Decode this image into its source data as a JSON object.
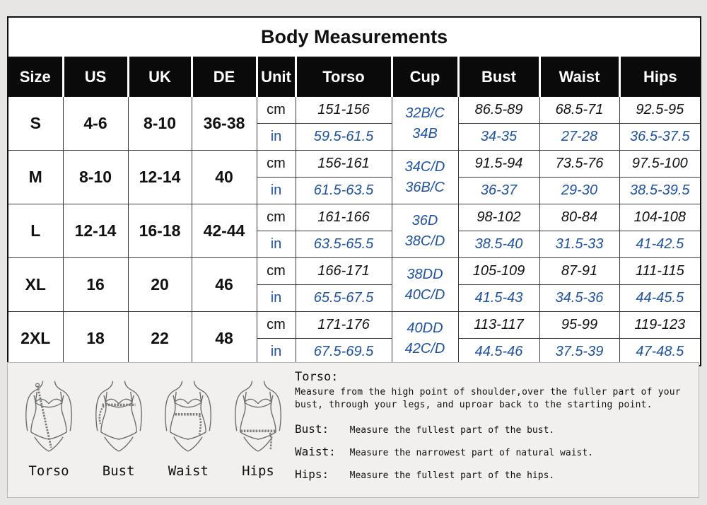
{
  "title": "Body Measurements",
  "table": {
    "columns": [
      "Size",
      "US",
      "UK",
      "DE",
      "Unit",
      "Torso",
      "Cup",
      "Bust",
      "Waist",
      "Hips"
    ],
    "unit_labels": {
      "cm": "cm",
      "in": "in"
    },
    "rows": [
      {
        "size": "S",
        "us": "4-6",
        "uk": "8-10",
        "de": "36-38",
        "cup": [
          "32B/C",
          "34B"
        ],
        "cm": {
          "torso": "151-156",
          "bust": "86.5-89",
          "waist": "68.5-71",
          "hips": "92.5-95"
        },
        "in": {
          "torso": "59.5-61.5",
          "bust": "34-35",
          "waist": "27-28",
          "hips": "36.5-37.5"
        }
      },
      {
        "size": "M",
        "us": "8-10",
        "uk": "12-14",
        "de": "40",
        "cup": [
          "34C/D",
          "36B/C"
        ],
        "cm": {
          "torso": "156-161",
          "bust": "91.5-94",
          "waist": "73.5-76",
          "hips": "97.5-100"
        },
        "in": {
          "torso": "61.5-63.5",
          "bust": "36-37",
          "waist": "29-30",
          "hips": "38.5-39.5"
        }
      },
      {
        "size": "L",
        "us": "12-14",
        "uk": "16-18",
        "de": "42-44",
        "cup": [
          "36D",
          "38C/D"
        ],
        "cm": {
          "torso": "161-166",
          "bust": "98-102",
          "waist": "80-84",
          "hips": "104-108"
        },
        "in": {
          "torso": "63.5-65.5",
          "bust": "38.5-40",
          "waist": "31.5-33",
          "hips": "41-42.5"
        }
      },
      {
        "size": "XL",
        "us": "16",
        "uk": "20",
        "de": "46",
        "cup": [
          "38DD",
          "40C/D"
        ],
        "cm": {
          "torso": "166-171",
          "bust": "105-109",
          "waist": "87-91",
          "hips": "111-115"
        },
        "in": {
          "torso": "65.5-67.5",
          "bust": "41.5-43",
          "waist": "34.5-36",
          "hips": "44-45.5"
        }
      },
      {
        "size": "2XL",
        "us": "18",
        "uk": "22",
        "de": "48",
        "cup": [
          "40DD",
          "42C/D"
        ],
        "cm": {
          "torso": "171-176",
          "bust": "113-117",
          "waist": "95-99",
          "hips": "119-123"
        },
        "in": {
          "torso": "67.5-69.5",
          "bust": "44.5-46",
          "waist": "37.5-39",
          "hips": "47-48.5"
        }
      }
    ]
  },
  "guide": {
    "figures": [
      {
        "label": "Torso"
      },
      {
        "label": "Bust"
      },
      {
        "label": "Waist"
      },
      {
        "label": "Hips"
      }
    ],
    "instructions": [
      {
        "term": "Torso:",
        "text": "Measure from the high point of shoulder,over the fuller part of your bust, through your legs, and uproar back to the starting point."
      },
      {
        "term": "Bust:",
        "text": "Measure the fullest part of the bust."
      },
      {
        "term": "Waist:",
        "text": "Measure the narrowest part of natural waist."
      },
      {
        "term": "Hips:",
        "text": "Measure the fullest part of the hips."
      }
    ]
  },
  "colors": {
    "accent_blue": "#1e52a2",
    "header_bg": "#0a0a0a",
    "header_text": "#ffffff",
    "page_bg": "#e8e6e5",
    "panel_bg": "#f1f0ef"
  }
}
